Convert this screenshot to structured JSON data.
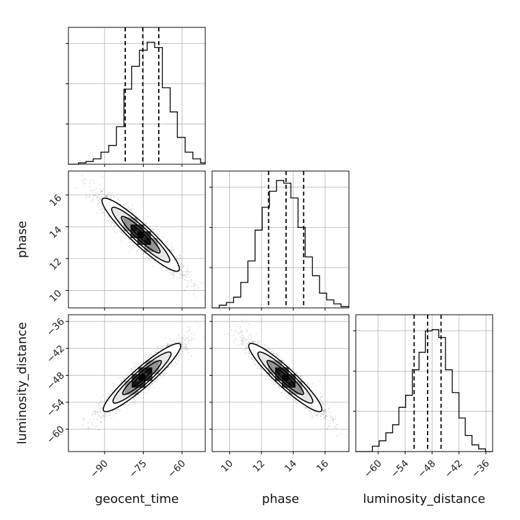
{
  "chart_data": {
    "type": "corner",
    "parameters": [
      "geocent_time",
      "phase",
      "luminosity_distance"
    ],
    "axis_labels": {
      "geocent_time": "geocent_time",
      "phase": "phase",
      "luminosity_distance": "luminosity_distance"
    },
    "ranges": {
      "geocent_time": [
        -104,
        -51
      ],
      "phase": [
        8.9,
        17.5
      ],
      "luminosity_distance": [
        -65,
        -34.5
      ]
    },
    "ticks": {
      "geocent_time": [
        -90,
        -75,
        -60
      ],
      "phase": [
        10,
        12,
        14,
        16
      ],
      "luminosity_distance": [
        -60,
        -54,
        -48,
        -42,
        -36
      ]
    },
    "quantiles": {
      "geocent_time": [
        -82,
        -75.2,
        -69
      ],
      "phase": [
        12.45,
        13.55,
        14.65
      ],
      "luminosity_distance": [
        -52,
        -49,
        -46
      ]
    },
    "histograms": {
      "geocent_time": {
        "edges": [
          -104,
          -100.1,
          -97.2,
          -94.4,
          -91.4,
          -88.4,
          -85.4,
          -82.5,
          -79.5,
          -76.5,
          -73.5,
          -70.6,
          -67.6,
          -64.6,
          -61.8,
          -58.8,
          -55.8,
          -52.8,
          -51
        ],
        "counts": [
          0.0,
          0.01,
          0.02,
          0.04,
          0.09,
          0.14,
          0.28,
          0.56,
          0.73,
          0.85,
          0.91,
          0.87,
          0.57,
          0.39,
          0.2,
          0.09,
          0.04,
          0.01
        ]
      },
      "phase": {
        "edges": [
          8.9,
          9.35,
          9.8,
          10.25,
          10.7,
          11.15,
          11.6,
          12.05,
          12.5,
          12.95,
          13.4,
          13.85,
          14.3,
          14.75,
          15.2,
          15.65,
          16.1,
          16.55,
          17.0,
          17.5
        ],
        "counts": [
          0.0,
          0.02,
          0.04,
          0.08,
          0.19,
          0.35,
          0.58,
          0.75,
          0.87,
          0.95,
          0.93,
          0.82,
          0.6,
          0.38,
          0.24,
          0.11,
          0.06,
          0.03,
          0.01
        ]
      },
      "luminosity_distance": {
        "edges": [
          -65,
          -61.3,
          -59.8,
          -58.3,
          -56.8,
          -55.4,
          -53.9,
          -52.4,
          -50.9,
          -49.5,
          -48.0,
          -46.5,
          -45.0,
          -43.5,
          -42.0,
          -40.6,
          -39.1,
          -37.6,
          -36.1,
          -34.5
        ],
        "counts": [
          0.0,
          0.04,
          0.08,
          0.14,
          0.2,
          0.33,
          0.42,
          0.61,
          0.74,
          0.9,
          0.91,
          0.85,
          0.61,
          0.44,
          0.25,
          0.12,
          0.05,
          0.02,
          0.0
        ]
      }
    },
    "pairs": [
      {
        "x": "geocent_time",
        "y": "phase",
        "mean": [
          -76,
          13.5
        ],
        "sd": [
          7.5,
          1.15
        ],
        "rho": -0.93,
        "contours_sigma": [
          0.5,
          1.0,
          1.5,
          2.0
        ]
      },
      {
        "x": "geocent_time",
        "y": "luminosity_distance",
        "mean": [
          -75.5,
          -48.5
        ],
        "sd": [
          7.5,
          3.8
        ],
        "rho": 0.93,
        "contours_sigma": [
          0.5,
          1.0,
          1.5,
          2.0
        ]
      },
      {
        "x": "phase",
        "y": "luminosity_distance",
        "mean": [
          13.5,
          -48.5
        ],
        "sd": [
          1.15,
          3.8
        ],
        "rho": -0.93,
        "contours_sigma": [
          0.5,
          1.0,
          1.5,
          2.0
        ]
      }
    ],
    "grid": true,
    "colors": {
      "line": "#000000",
      "grid": "#b0b0b0",
      "scatter": "#555555",
      "fill_dark": "#000000"
    }
  }
}
